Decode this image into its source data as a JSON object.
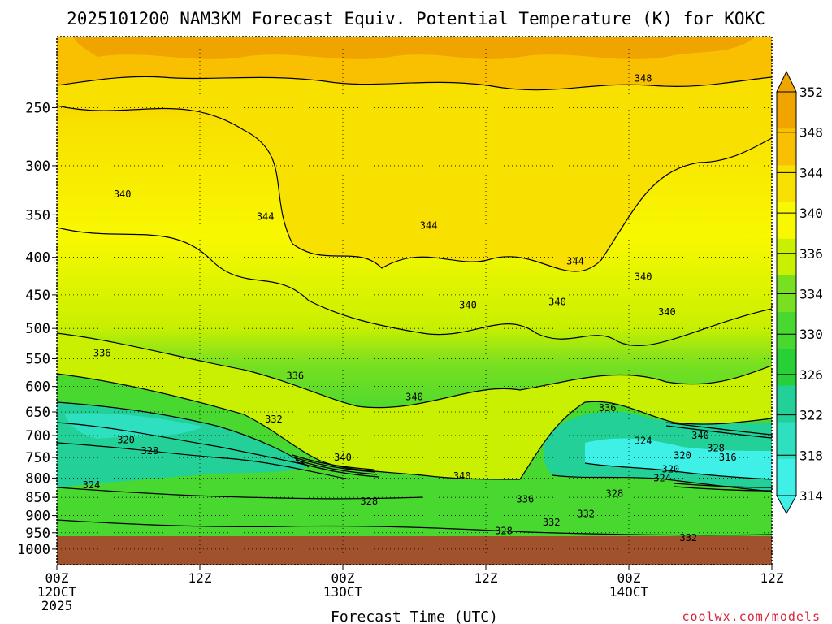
{
  "chart_data": {
    "type": "heatmap",
    "title": "2025101200 NAM3KM Forecast Equiv. Potential Temperature (K) for KOKC",
    "xlabel": "Forecast Time (UTC)",
    "ylabel": "",
    "x_ticks": [
      {
        "hour": 0,
        "line1": "00Z",
        "line2": "12OCT",
        "line3": "2025"
      },
      {
        "hour": 12,
        "line1": "12Z",
        "line2": "",
        "line3": ""
      },
      {
        "hour": 24,
        "line1": "00Z",
        "line2": "13OCT",
        "line3": ""
      },
      {
        "hour": 36,
        "line1": "12Z",
        "line2": "",
        "line3": ""
      },
      {
        "hour": 48,
        "line1": "00Z",
        "line2": "14OCT",
        "line3": ""
      },
      {
        "hour": 60,
        "line1": "12Z",
        "line2": "",
        "line3": ""
      }
    ],
    "xlim": [
      0,
      60
    ],
    "y_ticks": [
      250,
      300,
      350,
      400,
      450,
      500,
      550,
      600,
      650,
      700,
      750,
      800,
      850,
      900,
      950,
      1000
    ],
    "ylim_hpa": [
      200,
      1050
    ],
    "y_scale": "log-pressure",
    "grid": true,
    "surface_pressure_hpa": 965,
    "colorbar": {
      "ticks": [
        314,
        318,
        322,
        326,
        330,
        334,
        336,
        340,
        344,
        348,
        352
      ],
      "colors": [
        "#3ef0e6",
        "#2ee0c0",
        "#22d098",
        "#28d038",
        "#48d830",
        "#78e020",
        "#c8f000",
        "#f8f800",
        "#f8e000",
        "#f8c000",
        "#f0a400"
      ]
    },
    "contour_labels": [
      {
        "value": "348",
        "hour": 49.2,
        "p": 228
      },
      {
        "value": "340",
        "hour": 5.5,
        "p": 328
      },
      {
        "value": "344",
        "hour": 17.5,
        "p": 352
      },
      {
        "value": "344",
        "hour": 31.2,
        "p": 362
      },
      {
        "value": "344",
        "hour": 43.5,
        "p": 405
      },
      {
        "value": "340",
        "hour": 49.2,
        "p": 425
      },
      {
        "value": "340",
        "hour": 51.2,
        "p": 475
      },
      {
        "value": "340",
        "hour": 34.5,
        "p": 465
      },
      {
        "value": "340",
        "hour": 42.0,
        "p": 460
      },
      {
        "value": "336",
        "hour": 3.8,
        "p": 540
      },
      {
        "value": "336",
        "hour": 20.0,
        "p": 580
      },
      {
        "value": "340",
        "hour": 30.0,
        "p": 620
      },
      {
        "value": "332",
        "hour": 18.2,
        "p": 665
      },
      {
        "value": "336",
        "hour": 46.2,
        "p": 642
      },
      {
        "value": "320",
        "hour": 5.8,
        "p": 710
      },
      {
        "value": "328",
        "hour": 7.8,
        "p": 735
      },
      {
        "value": "340",
        "hour": 24.0,
        "p": 750
      },
      {
        "value": "324",
        "hour": 49.2,
        "p": 712
      },
      {
        "value": "340",
        "hour": 54.0,
        "p": 700
      },
      {
        "value": "328",
        "hour": 55.3,
        "p": 728
      },
      {
        "value": "320",
        "hour": 52.5,
        "p": 745
      },
      {
        "value": "316",
        "hour": 56.3,
        "p": 750
      },
      {
        "value": "320",
        "hour": 51.5,
        "p": 778
      },
      {
        "value": "324",
        "hour": 2.9,
        "p": 818
      },
      {
        "value": "340",
        "hour": 34.0,
        "p": 795
      },
      {
        "value": "324",
        "hour": 50.8,
        "p": 800
      },
      {
        "value": "328",
        "hour": 46.8,
        "p": 840
      },
      {
        "value": "328",
        "hour": 26.2,
        "p": 860
      },
      {
        "value": "336",
        "hour": 39.3,
        "p": 855
      },
      {
        "value": "332",
        "hour": 44.4,
        "p": 895
      },
      {
        "value": "332",
        "hour": 41.5,
        "p": 920
      },
      {
        "value": "328",
        "hour": 37.5,
        "p": 945
      },
      {
        "value": "332",
        "hour": 53.0,
        "p": 965
      }
    ]
  },
  "credit": "coolwx.com/models"
}
